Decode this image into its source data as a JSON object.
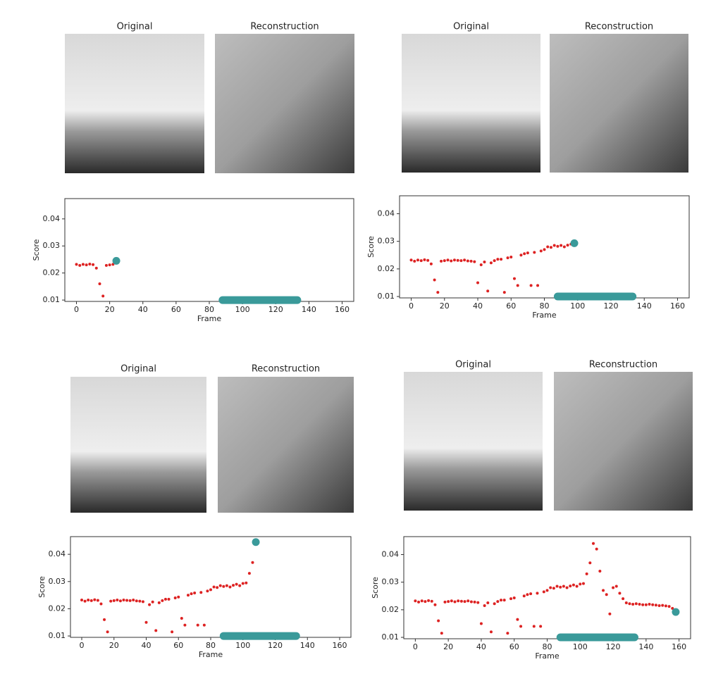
{
  "chart_data": [
    {
      "type": "scatter",
      "image_titles": [
        "Original",
        "Reconstruction"
      ],
      "xlabel": "Frame",
      "ylabel": "Score",
      "color": "#dd2222",
      "x": [
        0,
        2,
        4,
        6,
        8,
        10,
        12,
        14,
        16,
        18,
        20,
        22
      ],
      "values": [
        0.0232,
        0.0228,
        0.0232,
        0.023,
        0.0233,
        0.0231,
        0.0218,
        0.016,
        0.0115,
        0.0228,
        0.023,
        0.0232
      ],
      "current": {
        "x": 24,
        "y": 0.0245,
        "color": "#3a9a9a"
      },
      "highlight": {
        "x": [
          88,
          133
        ],
        "y": 0.01,
        "color": "#3a9a9a"
      },
      "xlim": [
        -7,
        167
      ],
      "xticks": [
        0,
        20,
        40,
        60,
        80,
        100,
        120,
        140,
        160
      ],
      "ylim": [
        0.0095,
        0.0475
      ],
      "yticks": [
        0.01,
        0.02,
        0.03,
        0.04
      ]
    },
    {
      "type": "scatter",
      "image_titles": [
        "Original",
        "Reconstruction"
      ],
      "xlabel": "Frame",
      "ylabel": "Score",
      "color": "#dd2222",
      "x": [
        0,
        2,
        4,
        6,
        8,
        10,
        12,
        14,
        16,
        18,
        20,
        22,
        24,
        26,
        28,
        30,
        32,
        34,
        36,
        38,
        40,
        42,
        44,
        46,
        48,
        50,
        52,
        54,
        56,
        58,
        60,
        62,
        64,
        66,
        68,
        70,
        72,
        74,
        76,
        78,
        80,
        82,
        84,
        86,
        88,
        90,
        92,
        94,
        96
      ],
      "values": [
        0.0232,
        0.0228,
        0.0232,
        0.023,
        0.0233,
        0.0231,
        0.0218,
        0.016,
        0.0115,
        0.0228,
        0.023,
        0.0232,
        0.0229,
        0.0232,
        0.0231,
        0.023,
        0.0232,
        0.0229,
        0.0228,
        0.0226,
        0.015,
        0.0215,
        0.0225,
        0.012,
        0.0222,
        0.023,
        0.0235,
        0.0235,
        0.0115,
        0.024,
        0.0243,
        0.0165,
        0.014,
        0.025,
        0.0255,
        0.0258,
        0.014,
        0.026,
        0.014,
        0.0265,
        0.027,
        0.028,
        0.0278,
        0.0285,
        0.0282,
        0.0285,
        0.028,
        0.0286,
        0.029
      ],
      "current": {
        "x": 98,
        "y": 0.0293,
        "color": "#3a9a9a"
      },
      "highlight": {
        "x": [
          88,
          133
        ],
        "y": 0.01,
        "color": "#3a9a9a"
      },
      "xlim": [
        -7,
        167
      ],
      "xticks": [
        0,
        20,
        40,
        60,
        80,
        100,
        120,
        140,
        160
      ],
      "ylim": [
        0.0095,
        0.0465
      ],
      "yticks": [
        0.01,
        0.02,
        0.03,
        0.04
      ]
    },
    {
      "type": "scatter",
      "image_titles": [
        "Original",
        "Reconstruction"
      ],
      "xlabel": "Frame",
      "ylabel": "Score",
      "color": "#dd2222",
      "x": [
        0,
        2,
        4,
        6,
        8,
        10,
        12,
        14,
        16,
        18,
        20,
        22,
        24,
        26,
        28,
        30,
        32,
        34,
        36,
        38,
        40,
        42,
        44,
        46,
        48,
        50,
        52,
        54,
        56,
        58,
        60,
        62,
        64,
        66,
        68,
        70,
        72,
        74,
        76,
        78,
        80,
        82,
        84,
        86,
        88,
        90,
        92,
        94,
        96,
        98,
        100,
        102,
        104,
        106
      ],
      "values": [
        0.0232,
        0.0228,
        0.0232,
        0.023,
        0.0233,
        0.0231,
        0.0218,
        0.016,
        0.0115,
        0.0228,
        0.023,
        0.0232,
        0.0229,
        0.0232,
        0.0231,
        0.023,
        0.0232,
        0.0229,
        0.0228,
        0.0226,
        0.015,
        0.0215,
        0.0225,
        0.012,
        0.0222,
        0.023,
        0.0235,
        0.0235,
        0.0115,
        0.024,
        0.0243,
        0.0165,
        0.014,
        0.025,
        0.0255,
        0.0258,
        0.014,
        0.026,
        0.014,
        0.0265,
        0.027,
        0.028,
        0.0278,
        0.0285,
        0.0282,
        0.0285,
        0.028,
        0.0286,
        0.029,
        0.0285,
        0.0293,
        0.0295,
        0.033,
        0.037
      ],
      "current": {
        "x": 108,
        "y": 0.0445,
        "color": "#3a9a9a"
      },
      "highlight": {
        "x": [
          88,
          133
        ],
        "y": 0.01,
        "color": "#3a9a9a"
      },
      "xlim": [
        -7,
        167
      ],
      "xticks": [
        0,
        20,
        40,
        60,
        80,
        100,
        120,
        140,
        160
      ],
      "ylim": [
        0.0095,
        0.0465
      ],
      "yticks": [
        0.01,
        0.02,
        0.03,
        0.04
      ]
    },
    {
      "type": "scatter",
      "image_titles": [
        "Original",
        "Reconstruction"
      ],
      "xlabel": "Frame",
      "ylabel": "Score",
      "color": "#dd2222",
      "x": [
        0,
        2,
        4,
        6,
        8,
        10,
        12,
        14,
        16,
        18,
        20,
        22,
        24,
        26,
        28,
        30,
        32,
        34,
        36,
        38,
        40,
        42,
        44,
        46,
        48,
        50,
        52,
        54,
        56,
        58,
        60,
        62,
        64,
        66,
        68,
        70,
        72,
        74,
        76,
        78,
        80,
        82,
        84,
        86,
        88,
        90,
        92,
        94,
        96,
        98,
        100,
        102,
        104,
        106,
        108,
        110,
        112,
        114,
        116,
        118,
        120,
        122,
        124,
        126,
        128,
        130,
        132,
        134,
        136,
        138,
        140,
        142,
        144,
        146,
        148,
        150,
        152,
        154,
        156
      ],
      "values": [
        0.0232,
        0.0228,
        0.0232,
        0.023,
        0.0233,
        0.0231,
        0.0218,
        0.016,
        0.0115,
        0.0228,
        0.023,
        0.0232,
        0.0229,
        0.0232,
        0.0231,
        0.023,
        0.0232,
        0.0229,
        0.0228,
        0.0226,
        0.015,
        0.0215,
        0.0225,
        0.012,
        0.0222,
        0.023,
        0.0235,
        0.0235,
        0.0115,
        0.024,
        0.0243,
        0.0165,
        0.014,
        0.025,
        0.0255,
        0.0258,
        0.014,
        0.026,
        0.014,
        0.0265,
        0.027,
        0.028,
        0.0278,
        0.0285,
        0.0282,
        0.0285,
        0.028,
        0.0286,
        0.029,
        0.0285,
        0.0293,
        0.0295,
        0.033,
        0.037,
        0.044,
        0.042,
        0.034,
        0.027,
        0.0255,
        0.0185,
        0.028,
        0.0285,
        0.026,
        0.024,
        0.0225,
        0.0222,
        0.022,
        0.0222,
        0.022,
        0.0218,
        0.0218,
        0.022,
        0.0218,
        0.0217,
        0.0215,
        0.0216,
        0.0214,
        0.0212,
        0.0205
      ],
      "current": {
        "x": 158,
        "y": 0.0192,
        "color": "#3a9a9a"
      },
      "highlight": {
        "x": [
          88,
          133
        ],
        "y": 0.01,
        "color": "#3a9a9a"
      },
      "xlim": [
        -7,
        167
      ],
      "xticks": [
        0,
        20,
        40,
        60,
        80,
        100,
        120,
        140,
        160
      ],
      "ylim": [
        0.0095,
        0.0465
      ],
      "yticks": [
        0.01,
        0.02,
        0.03,
        0.04
      ]
    }
  ]
}
